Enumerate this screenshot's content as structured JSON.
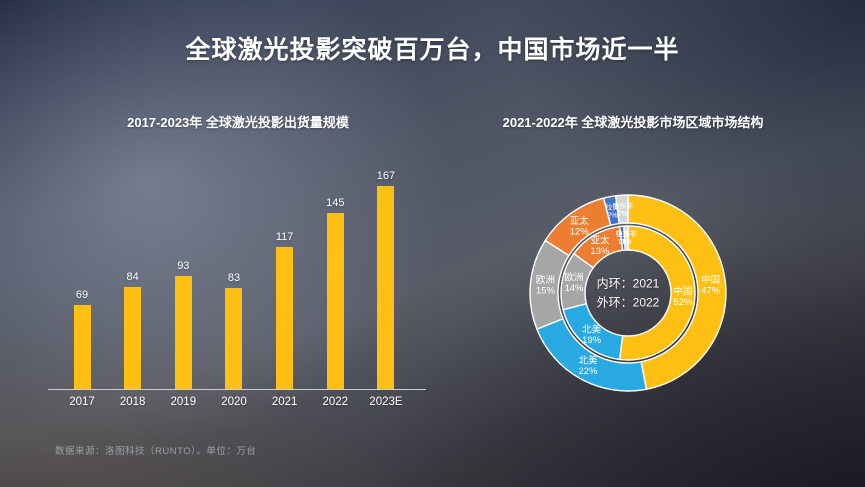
{
  "slide": {
    "title": "全球激光投影突破百万台，中国市场近一半",
    "footnote": "数据来源：洛图科技（RUNTO）。单位：万台"
  },
  "colors": {
    "bar": "#FFC013",
    "axis_line": "#C9CCD1",
    "title_text": "#FFFFFF",
    "footnote_text": "#9AA0A8"
  },
  "chart_data": [
    {
      "type": "bar",
      "title": "2017-2023年  全球激光投影出货量规模",
      "categories": [
        "2017",
        "2018",
        "2019",
        "2020",
        "2021",
        "2022",
        "2023E"
      ],
      "values": [
        69,
        84,
        93,
        83,
        117,
        145,
        167
      ],
      "unit": "万台",
      "bar_color": "#FFC013",
      "ylim": [
        0,
        180
      ],
      "gridlines": false,
      "data_labels": true,
      "legend": "none"
    },
    {
      "type": "pie",
      "subtype": "double-donut",
      "title": "2021-2022年  全球激光投影市场区域市场结构",
      "center_text": [
        "内环：2021",
        "外环：2022"
      ],
      "rings": [
        {
          "name": "2022",
          "position": "outer",
          "segments": [
            {
              "label": "中国",
              "value": 47,
              "pct": "47%",
              "color": "#FFC013"
            },
            {
              "label": "北美",
              "value": 22,
              "pct": "22%",
              "color": "#29A9E1"
            },
            {
              "label": "欧洲",
              "value": 15,
              "pct": "15%",
              "color": "#A6A6A6"
            },
            {
              "label": "亚太",
              "value": 12,
              "pct": "12%",
              "color": "#ED7D31"
            },
            {
              "label": "拉美",
              "value": 2,
              "pct": "2%",
              "color": "#4472C4"
            },
            {
              "label": "中东非",
              "value": 2,
              "pct": "2%",
              "color": "#D6D6D6"
            }
          ]
        },
        {
          "name": "2021",
          "position": "inner",
          "segments": [
            {
              "label": "中国",
              "value": 52,
              "pct": "52%",
              "color": "#FFC013"
            },
            {
              "label": "北美",
              "value": 19,
              "pct": "19%",
              "color": "#29A9E1"
            },
            {
              "label": "欧洲",
              "value": 14,
              "pct": "14%",
              "color": "#A6A6A6"
            },
            {
              "label": "亚太",
              "value": 13,
              "pct": "13%",
              "color": "#ED7D31"
            },
            {
              "label": "拉美",
              "value": 1,
              "pct": "1%",
              "color": "#4472C4"
            },
            {
              "label": "中东非",
              "value": 1,
              "pct": "1%",
              "color": "#D6D6D6"
            }
          ]
        }
      ],
      "legend": "none"
    }
  ]
}
